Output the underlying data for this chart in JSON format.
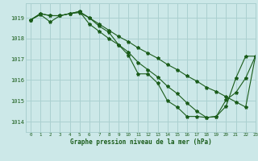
{
  "title": "Graphe pression niveau de la mer (hPa)",
  "background_color": "#cce8e8",
  "grid_color": "#aad0d0",
  "line_color": "#1a5c1a",
  "xlim": [
    -0.5,
    23
  ],
  "ylim": [
    1013.5,
    1019.7
  ],
  "yticks": [
    1014,
    1015,
    1016,
    1017,
    1018,
    1019
  ],
  "xticks": [
    0,
    1,
    2,
    3,
    4,
    5,
    6,
    7,
    8,
    9,
    10,
    11,
    12,
    13,
    14,
    15,
    16,
    17,
    18,
    19,
    20,
    21,
    22,
    23
  ],
  "series": [
    [
      1018.9,
      1019.2,
      1019.1,
      1019.1,
      1019.2,
      1019.3,
      1018.7,
      1018.35,
      1018.0,
      1017.7,
      1017.35,
      1016.85,
      1016.5,
      1016.15,
      1015.7,
      1015.35,
      1014.9,
      1014.5,
      1014.2,
      1014.25,
      1015.05,
      1015.4,
      1016.1,
      1017.15
    ],
    [
      1018.9,
      1019.2,
      1019.1,
      1019.1,
      1019.2,
      1019.3,
      1019.0,
      1018.6,
      1018.3,
      1017.7,
      1017.2,
      1016.3,
      1016.3,
      1015.85,
      1015.0,
      1014.7,
      1014.25,
      1014.25,
      1014.2,
      1014.25,
      1014.75,
      1016.1,
      1017.15,
      1017.15
    ],
    [
      1018.9,
      1019.15,
      1018.8,
      1019.1,
      1019.2,
      1019.25,
      1019.0,
      1018.7,
      1018.4,
      1018.1,
      1017.85,
      1017.55,
      1017.3,
      1017.05,
      1016.75,
      1016.5,
      1016.2,
      1015.95,
      1015.65,
      1015.45,
      1015.2,
      1014.95,
      1014.7,
      1017.15
    ]
  ]
}
